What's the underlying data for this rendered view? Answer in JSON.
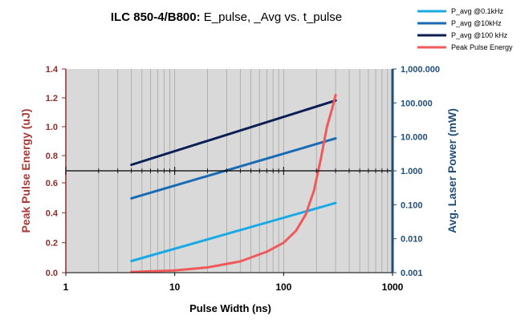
{
  "chart_data": {
    "type": "line",
    "title_bold": "ILC 850-4/B800:",
    "title_rest": " E_pulse, _Avg vs. t_pulse",
    "xlabel": "Pulse Width (ns)",
    "ylabel_left": "Peak Pulse Energy (uJ)",
    "ylabel_right": "Avg. Laser Power (mW)",
    "x_scale": "log",
    "xlim": [
      1,
      1000
    ],
    "x_ticks": [
      {
        "value": 1,
        "label": "1"
      },
      {
        "value": 10,
        "label": "10"
      },
      {
        "value": 100,
        "label": "100"
      },
      {
        "value": 1000,
        "label": "1000"
      }
    ],
    "left_axis_note": "left axis is split at the 1.000 mW line: upper part 0.8-1.4, lower part 0.0-0.6",
    "left_ticks_upper": [
      {
        "value": 0.8,
        "label": "0.8"
      },
      {
        "value": 1.0,
        "label": "1.0"
      },
      {
        "value": 1.2,
        "label": "1.2"
      },
      {
        "value": 1.4,
        "label": "1.4"
      }
    ],
    "left_ticks_lower": [
      {
        "value": 0.0,
        "label": "0.0"
      },
      {
        "value": 0.2,
        "label": "0.2"
      },
      {
        "value": 0.4,
        "label": "0.4"
      },
      {
        "value": 0.6,
        "label": "0.6"
      }
    ],
    "y_right_scale": "log",
    "y_right_lim": [
      0.001,
      1000
    ],
    "right_ticks": [
      {
        "value": 0.001,
        "label": "0.001"
      },
      {
        "value": 0.01,
        "label": "0.010"
      },
      {
        "value": 0.1,
        "label": "0.100"
      },
      {
        "value": 1,
        "label": "1.000"
      },
      {
        "value": 10,
        "label": "10.000"
      },
      {
        "value": 100,
        "label": "100.000"
      },
      {
        "value": 1000,
        "label": "1,000.000"
      }
    ],
    "grid": true,
    "legend_position": "top-right",
    "series": [
      {
        "name": "P_avg @0.1kHz",
        "color": "#19aae6",
        "axis": "right",
        "x": [
          4,
          300
        ],
        "values": [
          0.0022,
          0.113
        ]
      },
      {
        "name": "P_avg @10kHz",
        "color": "#1a6bb5",
        "axis": "right",
        "x": [
          4,
          300
        ],
        "values": [
          0.155,
          9.0
        ]
      },
      {
        "name": "P_avg @100 kHz",
        "color": "#0b1f55",
        "axis": "right",
        "x": [
          4,
          300
        ],
        "values": [
          1.5,
          118
        ]
      },
      {
        "name": "Peak Pulse Energy",
        "color": "#f05a5a",
        "axis": "left",
        "x": [
          4,
          10,
          20,
          40,
          70,
          100,
          130,
          160,
          190,
          220,
          250,
          280,
          300
        ],
        "values": [
          0.005,
          0.015,
          0.035,
          0.075,
          0.14,
          0.2,
          0.28,
          0.39,
          0.55,
          0.78,
          1.0,
          1.13,
          1.22
        ]
      }
    ]
  }
}
